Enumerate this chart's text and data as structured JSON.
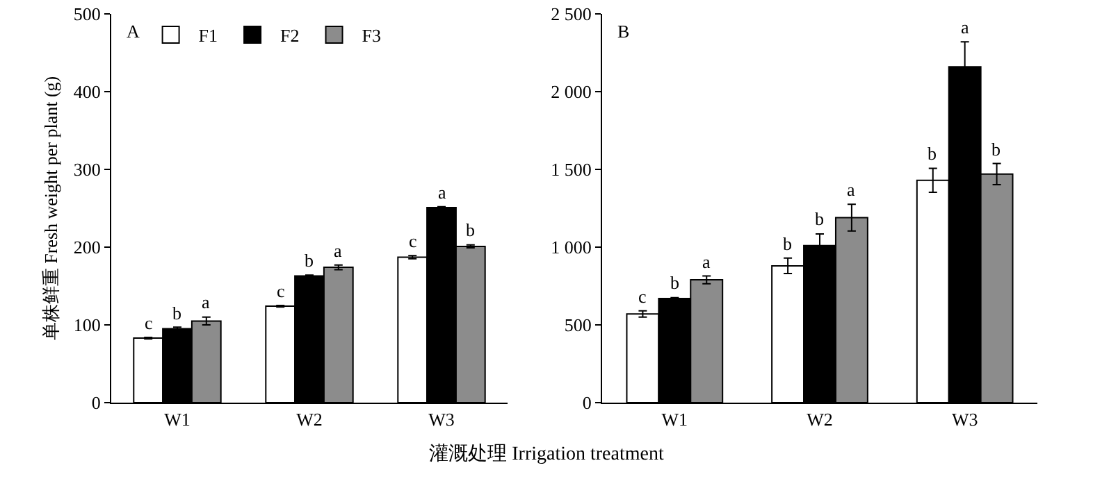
{
  "chart_data": [
    {
      "type": "bar",
      "ylabel": "单株鲜重 Fresh weight per plant (g)",
      "xlabel": "灌溉处理 Irrigation treatment",
      "annotations": [
        "A"
      ],
      "categories": [
        "W1",
        "W2",
        "W3"
      ],
      "ylim": [
        0,
        500
      ],
      "yticks": [
        0,
        100,
        200,
        300,
        400,
        500
      ],
      "grid": false,
      "legend": "top left",
      "series": [
        {
          "name": "F1",
          "color": "#ffffff",
          "values": [
            83,
            124,
            187
          ],
          "errors": [
            1,
            1,
            2
          ],
          "value_labels": [
            "c",
            "c",
            "c"
          ]
        },
        {
          "name": "F2",
          "color": "#000000",
          "values": [
            95,
            163,
            251
          ],
          "errors": [
            2,
            1,
            1
          ],
          "value_labels": [
            "b",
            "b",
            "a"
          ]
        },
        {
          "name": "F3",
          "color": "#8c8c8c",
          "values": [
            105,
            174,
            201
          ],
          "errors": [
            5,
            3,
            2
          ],
          "value_labels": [
            "a",
            "a",
            "b"
          ]
        }
      ]
    },
    {
      "type": "bar",
      "annotations": [
        "B"
      ],
      "categories": [
        "W1",
        "W2",
        "W3"
      ],
      "ylim": [
        0,
        2500
      ],
      "yticks": [
        0,
        500,
        {
          "value": 1000,
          "label": "1 000"
        },
        {
          "value": 1500,
          "label": "1 500"
        },
        {
          "value": 2000,
          "label": "2 000"
        },
        {
          "value": 2500,
          "label": "2 500"
        }
      ],
      "grid": false,
      "series": [
        {
          "color": "#ffffff",
          "values": [
            570,
            880,
            1430
          ],
          "errors": [
            20,
            50,
            77
          ],
          "value_labels": [
            "c",
            "b",
            "b"
          ]
        },
        {
          "color": "#000000",
          "values": [
            670,
            1010,
            2160
          ],
          "errors": [
            5,
            75,
            160
          ],
          "value_labels": [
            "b",
            "b",
            "a"
          ]
        },
        {
          "color": "#8c8c8c",
          "values": [
            790,
            1190,
            1470
          ],
          "errors": [
            25,
            86,
            68
          ],
          "value_labels": [
            "a",
            "a",
            "b"
          ]
        }
      ]
    }
  ]
}
